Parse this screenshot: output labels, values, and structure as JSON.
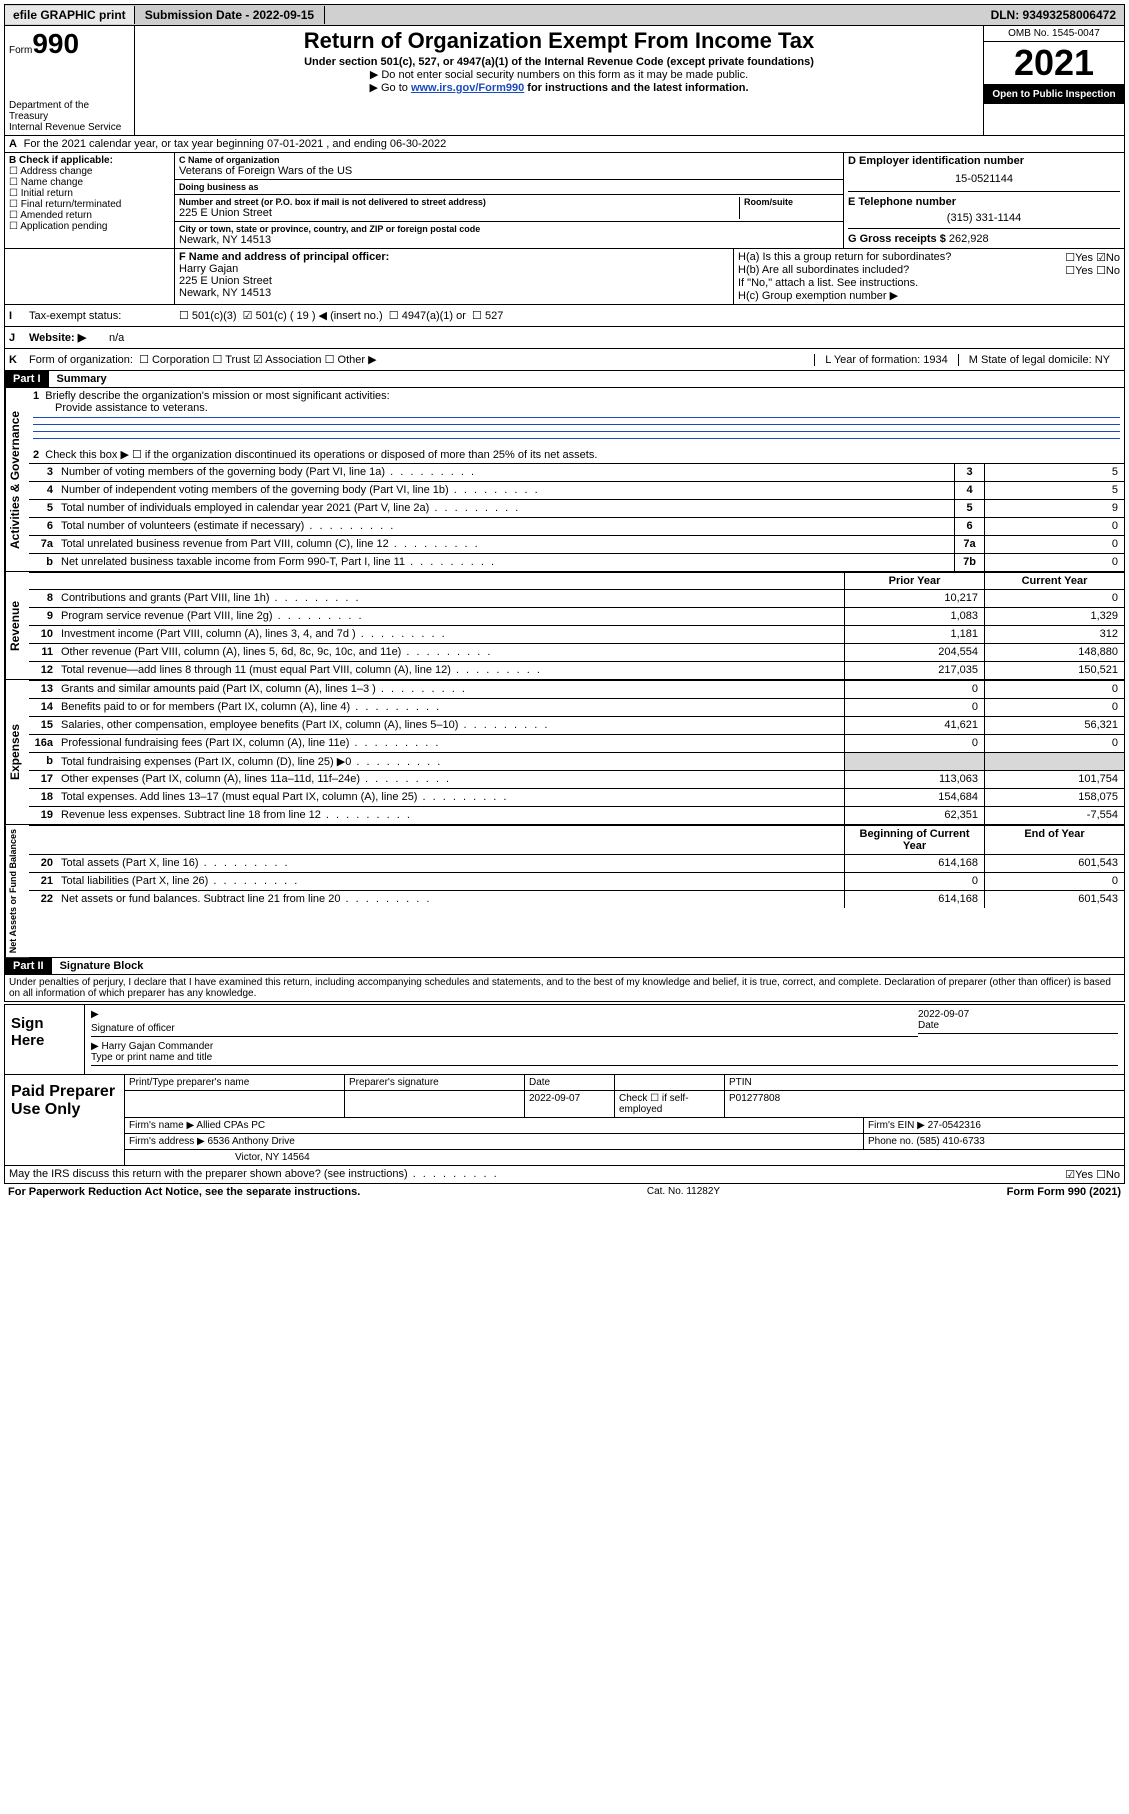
{
  "topbar": {
    "efile": "efile GRAPHIC print",
    "submission_label": "Submission Date - 2022-09-15",
    "dln": "DLN: 93493258006472"
  },
  "header": {
    "form_word": "Form",
    "form_no": "990",
    "title": "Return of Organization Exempt From Income Tax",
    "sub1": "Under section 501(c), 527, or 4947(a)(1) of the Internal Revenue Code (except private foundations)",
    "sub2": "Do not enter social security numbers on this form as it may be made public.",
    "sub3_pre": "Go to ",
    "sub3_link": "www.irs.gov/Form990",
    "sub3_post": " for instructions and the latest information.",
    "omb": "OMB No. 1545-0047",
    "year": "2021",
    "open": "Open to Public Inspection",
    "dept": "Department of the Treasury",
    "irs": "Internal Revenue Service"
  },
  "row_a": {
    "label": "A",
    "text": "For the 2021 calendar year, or tax year beginning 07-01-2021    , and ending 06-30-2022"
  },
  "col_b": {
    "label": "B Check if applicable:",
    "items": [
      "Address change",
      "Name change",
      "Initial return",
      "Final return/terminated",
      "Amended return",
      "Application pending"
    ]
  },
  "col_c": {
    "name_lbl": "C Name of organization",
    "name": "Veterans of Foreign Wars of the US",
    "dba_lbl": "Doing business as",
    "dba": "",
    "addr_lbl": "Number and street (or P.O. box if mail is not delivered to street address)",
    "room_lbl": "Room/suite",
    "addr": "225 E Union Street",
    "city_lbl": "City or town, state or province, country, and ZIP or foreign postal code",
    "city": "Newark, NY  14513"
  },
  "col_d": {
    "ein_lbl": "D Employer identification number",
    "ein": "15-0521144",
    "phone_lbl": "E Telephone number",
    "phone": "(315) 331-1144",
    "gross_lbl": "G Gross receipts $",
    "gross": "262,928"
  },
  "row_f": {
    "lbl": "F  Name and address of principal officer:",
    "name": "Harry Gajan",
    "addr1": "225 E Union Street",
    "addr2": "Newark, NY  14513"
  },
  "row_h": {
    "ha": "H(a)  Is this a group return for subordinates?",
    "hb": "H(b)  Are all subordinates included?",
    "hb_note": "If \"No,\" attach a list. See instructions.",
    "hc": "H(c)  Group exemption number ▶",
    "yesno_a": "☐Yes ☑No",
    "yesno_b": "☐Yes ☐No"
  },
  "row_i": {
    "lbl": "I",
    "text": "Tax-exempt status:",
    "opts": [
      "501(c)(3)",
      "501(c) ( 19 ) ◀ (insert no.)",
      "4947(a)(1) or",
      "527"
    ],
    "checked_idx": 1
  },
  "row_j": {
    "lbl": "J",
    "text": "Website: ▶",
    "val": "n/a"
  },
  "row_k": {
    "lbl": "K",
    "text": "Form of organization:",
    "opts": [
      "Corporation",
      "Trust",
      "Association",
      "Other ▶"
    ],
    "checked_idx": 2
  },
  "row_l": {
    "text": "L Year of formation: 1934"
  },
  "row_m": {
    "text": "M State of legal domicile: NY"
  },
  "part1": {
    "hdr": "Part I",
    "title": "Summary",
    "q1_lbl": "1",
    "q1": "Briefly describe the organization's mission or most significant activities:",
    "q1_val": "Provide assistance to veterans.",
    "q2_lbl": "2",
    "q2": "Check this box ▶ ☐  if the organization discontinued its operations or disposed of more than 25% of its net assets."
  },
  "governance": {
    "section": "Activities & Governance",
    "rows": [
      {
        "n": "3",
        "d": "Number of voting members of the governing body (Part VI, line 1a)",
        "box": "3",
        "v": "5"
      },
      {
        "n": "4",
        "d": "Number of independent voting members of the governing body (Part VI, line 1b)",
        "box": "4",
        "v": "5"
      },
      {
        "n": "5",
        "d": "Total number of individuals employed in calendar year 2021 (Part V, line 2a)",
        "box": "5",
        "v": "9"
      },
      {
        "n": "6",
        "d": "Total number of volunteers (estimate if necessary)",
        "box": "6",
        "v": "0"
      },
      {
        "n": "7a",
        "d": "Total unrelated business revenue from Part VIII, column (C), line 12",
        "box": "7a",
        "v": "0"
      },
      {
        "n": "b",
        "d": "Net unrelated business taxable income from Form 990-T, Part I, line 11",
        "box": "7b",
        "v": "0"
      }
    ]
  },
  "revenue": {
    "section": "Revenue",
    "hdr_prior": "Prior Year",
    "hdr_curr": "Current Year",
    "rows": [
      {
        "n": "8",
        "d": "Contributions and grants (Part VIII, line 1h)",
        "p": "10,217",
        "c": "0"
      },
      {
        "n": "9",
        "d": "Program service revenue (Part VIII, line 2g)",
        "p": "1,083",
        "c": "1,329"
      },
      {
        "n": "10",
        "d": "Investment income (Part VIII, column (A), lines 3, 4, and 7d )",
        "p": "1,181",
        "c": "312"
      },
      {
        "n": "11",
        "d": "Other revenue (Part VIII, column (A), lines 5, 6d, 8c, 9c, 10c, and 11e)",
        "p": "204,554",
        "c": "148,880"
      },
      {
        "n": "12",
        "d": "Total revenue—add lines 8 through 11 (must equal Part VIII, column (A), line 12)",
        "p": "217,035",
        "c": "150,521"
      }
    ]
  },
  "expenses": {
    "section": "Expenses",
    "rows": [
      {
        "n": "13",
        "d": "Grants and similar amounts paid (Part IX, column (A), lines 1–3 )",
        "p": "0",
        "c": "0"
      },
      {
        "n": "14",
        "d": "Benefits paid to or for members (Part IX, column (A), line 4)",
        "p": "0",
        "c": "0"
      },
      {
        "n": "15",
        "d": "Salaries, other compensation, employee benefits (Part IX, column (A), lines 5–10)",
        "p": "41,621",
        "c": "56,321"
      },
      {
        "n": "16a",
        "d": "Professional fundraising fees (Part IX, column (A), line 11e)",
        "p": "0",
        "c": "0"
      },
      {
        "n": "b",
        "d": "Total fundraising expenses (Part IX, column (D), line 25) ▶0",
        "p": "",
        "c": "",
        "shade": true
      },
      {
        "n": "17",
        "d": "Other expenses (Part IX, column (A), lines 11a–11d, 11f–24e)",
        "p": "113,063",
        "c": "101,754"
      },
      {
        "n": "18",
        "d": "Total expenses. Add lines 13–17 (must equal Part IX, column (A), line 25)",
        "p": "154,684",
        "c": "158,075"
      },
      {
        "n": "19",
        "d": "Revenue less expenses. Subtract line 18 from line 12",
        "p": "62,351",
        "c": "-7,554"
      }
    ]
  },
  "netassets": {
    "section": "Net Assets or Fund Balances",
    "hdr_prior": "Beginning of Current Year",
    "hdr_curr": "End of Year",
    "rows": [
      {
        "n": "20",
        "d": "Total assets (Part X, line 16)",
        "p": "614,168",
        "c": "601,543"
      },
      {
        "n": "21",
        "d": "Total liabilities (Part X, line 26)",
        "p": "0",
        "c": "0"
      },
      {
        "n": "22",
        "d": "Net assets or fund balances. Subtract line 21 from line 20",
        "p": "614,168",
        "c": "601,543"
      }
    ]
  },
  "part2": {
    "hdr": "Part II",
    "title": "Signature Block",
    "decl": "Under penalties of perjury, I declare that I have examined this return, including accompanying schedules and statements, and to the best of my knowledge and belief, it is true, correct, and complete. Declaration of preparer (other than officer) is based on all information of which preparer has any knowledge."
  },
  "sign": {
    "left": "Sign Here",
    "sig_lbl": "Signature of officer",
    "date_lbl": "Date",
    "date": "2022-09-07",
    "name": "Harry Gajan  Commander",
    "name_lbl": "Type or print name and title"
  },
  "preparer": {
    "left": "Paid Preparer Use Only",
    "hdr": [
      "Print/Type preparer's name",
      "Preparer's signature",
      "Date",
      "",
      "PTIN"
    ],
    "r1": [
      "",
      "",
      "2022-09-07",
      "Check ☐ if self-employed",
      "P01277808"
    ],
    "firm_name_lbl": "Firm's name   ▶",
    "firm_name": "Allied CPAs PC",
    "firm_ein_lbl": "Firm's EIN ▶",
    "firm_ein": "27-0542316",
    "firm_addr_lbl": "Firm's address ▶",
    "firm_addr1": "6536 Anthony Drive",
    "firm_addr2": "Victor, NY  14564",
    "phone_lbl": "Phone no.",
    "phone": "(585) 410-6733"
  },
  "discuss": {
    "q": "May the IRS discuss this return with the preparer shown above? (see instructions)",
    "a": "☑Yes  ☐No"
  },
  "footer": {
    "left": "For Paperwork Reduction Act Notice, see the separate instructions.",
    "mid": "Cat. No. 11282Y",
    "right": "Form 990 (2021)"
  }
}
